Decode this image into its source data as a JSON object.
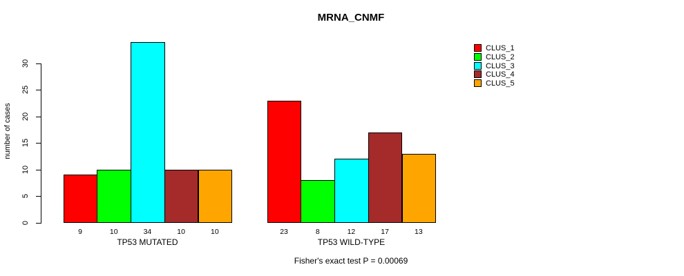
{
  "chart_data": {
    "type": "bar",
    "title": "MRNA_CNMF",
    "ylabel": "number of cases",
    "xlabel": "",
    "yticks": [
      0,
      5,
      10,
      15,
      20,
      25,
      30
    ],
    "ylim": [
      0,
      34
    ],
    "grid": false,
    "legend_position": "right",
    "bar_value_labels_shown": true,
    "series_labels": [
      "CLUS_1",
      "CLUS_2",
      "CLUS_3",
      "CLUS_4",
      "CLUS_5"
    ],
    "colors": [
      "#FF0000",
      "#00FF00",
      "#00FFFF",
      "#A52A2A",
      "#FFA500"
    ],
    "groups": [
      {
        "label": "TP53 MUTATED",
        "values": [
          9,
          10,
          34,
          10,
          10
        ]
      },
      {
        "label": "TP53 WILD-TYPE",
        "values": [
          23,
          8,
          12,
          17,
          13
        ]
      }
    ],
    "annotation": "Fisher's exact test P = 0.00069"
  }
}
